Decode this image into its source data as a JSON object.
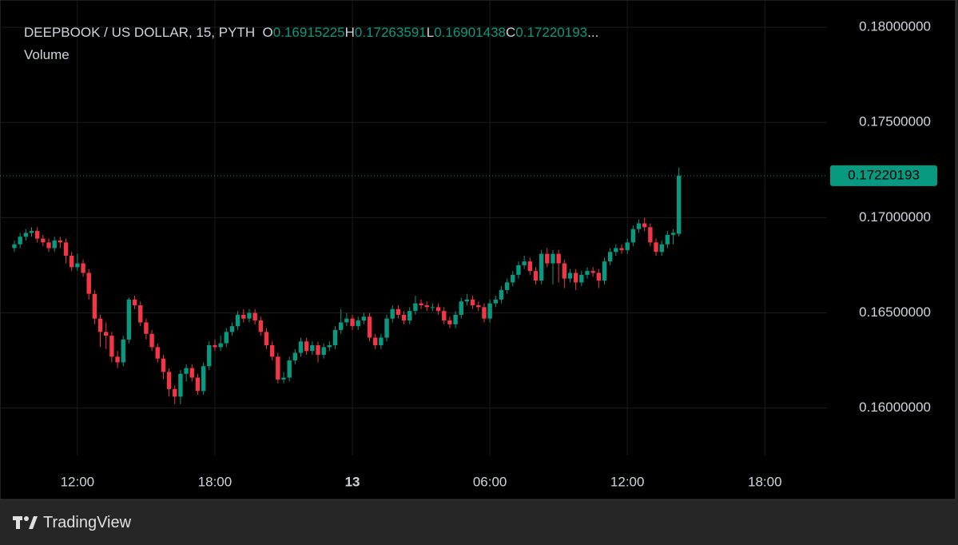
{
  "chart_data": {
    "type": "candlestick",
    "title": "DEEPBOOK / US DOLLAR, 15, PYTH",
    "subtitle": "Volume",
    "ohlc_labels": [
      "O",
      "H",
      "L",
      "C"
    ],
    "header_ellipsis": "...",
    "brand": "TradingView",
    "up_color": "#089981",
    "down_color": "#f23645",
    "grid": true,
    "categories": [
      null,
      null,
      null,
      null,
      null,
      null,
      null,
      null,
      null,
      null,
      null,
      "12:00",
      null,
      null,
      null,
      null,
      null,
      null,
      null,
      null,
      null,
      null,
      null,
      null,
      null,
      null,
      null,
      null,
      null,
      null,
      null,
      null,
      null,
      null,
      null,
      "18:00",
      null,
      null,
      null,
      null,
      null,
      null,
      null,
      null,
      null,
      null,
      null,
      null,
      null,
      null,
      null,
      null,
      null,
      null,
      null,
      null,
      null,
      null,
      null,
      "13",
      null,
      null,
      null,
      null,
      null,
      null,
      null,
      null,
      null,
      null,
      null,
      null,
      null,
      null,
      null,
      null,
      null,
      null,
      null,
      null,
      null,
      null,
      null,
      "06:00",
      null,
      null,
      null,
      null,
      null,
      null,
      null,
      null,
      null,
      null,
      null,
      null,
      null,
      null,
      null,
      null,
      null,
      null,
      null,
      null,
      null,
      null,
      null,
      "12:00",
      null,
      null,
      null,
      null,
      null,
      null,
      null,
      null,
      null,
      null,
      null,
      null,
      null,
      null,
      null,
      null,
      null,
      null,
      null,
      null,
      null,
      null,
      null,
      "18:00"
    ],
    "open": [
      0.1684,
      0.1686,
      0.169,
      0.1692,
      0.1693,
      0.1689,
      0.1687,
      0.1684,
      0.1688,
      0.1687,
      0.168,
      0.1674,
      0.1676,
      0.1671,
      0.166,
      0.1647,
      0.164,
      0.1638,
      0.1627,
      0.1624,
      0.1636,
      0.1657,
      0.1654,
      0.1645,
      0.1639,
      0.1632,
      0.1626,
      0.1619,
      0.161,
      0.1606,
      0.1618,
      0.1621,
      0.1616,
      0.1609,
      0.1622,
      0.1633,
      0.1632,
      0.1634,
      0.164,
      0.1643,
      0.1649,
      0.1647,
      0.165,
      0.1646,
      0.164,
      0.1633,
      0.1627,
      0.1615,
      0.1616,
      0.1625,
      0.1629,
      0.1635,
      0.163,
      0.1633,
      0.1628,
      0.1632,
      0.1633,
      0.1641,
      0.1645,
      0.1647,
      0.1643,
      0.1646,
      0.1648,
      0.1637,
      0.1633,
      0.1637,
      0.1647,
      0.1652,
      0.1649,
      0.1646,
      0.1651,
      0.1655,
      0.1654,
      0.1653,
      0.1653,
      0.1651,
      0.1646,
      0.1644,
      0.1649,
      0.1656,
      0.1657,
      0.1654,
      0.1653,
      0.1647,
      0.1655,
      0.1657,
      0.1662,
      0.1666,
      0.167,
      0.1675,
      0.1677,
      0.1672,
      0.1667,
      0.1681,
      0.1676,
      0.1681,
      0.1676,
      0.1668,
      0.1671,
      0.1666,
      0.167,
      0.1672,
      0.1671,
      0.1667,
      0.1677,
      0.1682,
      0.1684,
      0.1683,
      0.1687,
      0.1694,
      0.1697,
      0.1695,
      0.1687,
      0.1682,
      0.1686,
      0.1691,
      0.16915225,
      null,
      null,
      null,
      null,
      null,
      null,
      null,
      null,
      null,
      null,
      null,
      null,
      null,
      null,
      null
    ],
    "high": [
      0.1688,
      0.1692,
      0.1694,
      0.1695,
      0.1695,
      0.1691,
      0.1689,
      0.169,
      0.169,
      0.1689,
      0.1682,
      0.1681,
      0.1678,
      0.1673,
      0.1662,
      0.1649,
      0.1645,
      0.164,
      0.163,
      0.1638,
      0.1658,
      0.1659,
      0.1656,
      0.1647,
      0.1641,
      0.1634,
      0.1628,
      0.1621,
      0.1612,
      0.162,
      0.1623,
      0.1623,
      0.1618,
      0.1624,
      0.1635,
      0.1636,
      0.1638,
      0.1642,
      0.1645,
      0.1651,
      0.1652,
      0.1652,
      0.1652,
      0.1648,
      0.1642,
      0.1635,
      0.1629,
      0.1619,
      0.1627,
      0.1631,
      0.1637,
      0.1637,
      0.1635,
      0.1635,
      0.1634,
      0.1635,
      0.1643,
      0.1652,
      0.165,
      0.1649,
      0.1648,
      0.165,
      0.165,
      0.1639,
      0.1639,
      0.1649,
      0.1654,
      0.1654,
      0.1651,
      0.1653,
      0.1659,
      0.1657,
      0.1656,
      0.1655,
      0.1655,
      0.1653,
      0.1648,
      0.1651,
      0.1658,
      0.166,
      0.1659,
      0.1656,
      0.1655,
      0.1657,
      0.1659,
      0.1664,
      0.1668,
      0.1672,
      0.1677,
      0.168,
      0.1679,
      0.1674,
      0.1683,
      0.1684,
      0.1683,
      0.1683,
      0.1678,
      0.1673,
      0.1673,
      0.1672,
      0.1674,
      0.1674,
      0.1673,
      0.1679,
      0.1684,
      0.1686,
      0.1686,
      0.1689,
      0.1696,
      0.1699,
      0.17,
      0.1697,
      0.1689,
      0.1688,
      0.1693,
      0.1694,
      0.17263591,
      null,
      null,
      null,
      null,
      null,
      null,
      null,
      null,
      null,
      null,
      null,
      null,
      null,
      null,
      null
    ],
    "low": [
      0.1682,
      0.1684,
      0.1688,
      0.169,
      0.1687,
      0.1685,
      0.1682,
      0.1682,
      0.1684,
      0.1676,
      0.1672,
      0.1672,
      0.1669,
      0.1657,
      0.1644,
      0.1632,
      0.1631,
      0.1624,
      0.1621,
      0.1622,
      0.1634,
      0.1652,
      0.1643,
      0.1636,
      0.163,
      0.1624,
      0.1615,
      0.1606,
      0.1602,
      0.1602,
      0.1614,
      0.1614,
      0.1607,
      0.1607,
      0.162,
      0.163,
      0.163,
      0.1632,
      0.1638,
      0.1641,
      0.1645,
      0.1645,
      0.1644,
      0.1638,
      0.1631,
      0.1625,
      0.1613,
      0.1613,
      0.1614,
      0.1623,
      0.1627,
      0.1628,
      0.1628,
      0.1624,
      0.1626,
      0.163,
      0.1631,
      0.1639,
      0.1643,
      0.1641,
      0.1641,
      0.1644,
      0.1635,
      0.1631,
      0.1631,
      0.1635,
      0.1645,
      0.1647,
      0.1644,
      0.1644,
      0.1649,
      0.1652,
      0.1651,
      0.1651,
      0.1649,
      0.1644,
      0.1642,
      0.1642,
      0.1647,
      0.1654,
      0.1652,
      0.1651,
      0.1645,
      0.1645,
      0.1653,
      0.1655,
      0.166,
      0.1664,
      0.1668,
      0.1673,
      0.167,
      0.1665,
      0.1665,
      0.1674,
      0.1665,
      0.1666,
      0.1663,
      0.1666,
      0.1662,
      0.1664,
      0.1668,
      0.1669,
      0.1663,
      0.1665,
      0.1675,
      0.168,
      0.1681,
      0.1681,
      0.1685,
      0.1692,
      0.1693,
      0.1685,
      0.168,
      0.168,
      0.1684,
      0.1686,
      0.16901438,
      null,
      null,
      null,
      null,
      null,
      null,
      null,
      null,
      null,
      null,
      null,
      null,
      null,
      null,
      null
    ],
    "close": [
      0.1686,
      0.169,
      0.1692,
      0.1693,
      0.1689,
      0.1687,
      0.1684,
      0.1688,
      0.1687,
      0.168,
      0.1674,
      0.1676,
      0.1671,
      0.166,
      0.1647,
      0.164,
      0.1638,
      0.1627,
      0.1624,
      0.1636,
      0.1657,
      0.1654,
      0.1645,
      0.1639,
      0.1632,
      0.1626,
      0.1619,
      0.161,
      0.1606,
      0.1618,
      0.1621,
      0.1616,
      0.1609,
      0.1622,
      0.1633,
      0.1632,
      0.1634,
      0.164,
      0.1643,
      0.1649,
      0.1647,
      0.165,
      0.1646,
      0.164,
      0.1633,
      0.1627,
      0.1615,
      0.1616,
      0.1625,
      0.1629,
      0.1635,
      0.163,
      0.1633,
      0.1628,
      0.1632,
      0.1633,
      0.1641,
      0.1645,
      0.1647,
      0.1643,
      0.1646,
      0.1648,
      0.1637,
      0.1633,
      0.1637,
      0.1647,
      0.1652,
      0.1649,
      0.1646,
      0.1651,
      0.1655,
      0.1654,
      0.1653,
      0.1653,
      0.1651,
      0.1646,
      0.1644,
      0.1649,
      0.1656,
      0.1657,
      0.1654,
      0.1653,
      0.1647,
      0.1655,
      0.1657,
      0.1662,
      0.1666,
      0.167,
      0.1675,
      0.1677,
      0.1672,
      0.1667,
      0.1681,
      0.1676,
      0.1681,
      0.1676,
      0.1668,
      0.1671,
      0.1666,
      0.167,
      0.1672,
      0.1671,
      0.1667,
      0.1677,
      0.1682,
      0.1684,
      0.1683,
      0.1687,
      0.1694,
      0.1697,
      0.1695,
      0.1687,
      0.1682,
      0.1686,
      0.1691,
      0.1692,
      0.17220193,
      null,
      null,
      null,
      null,
      null,
      null,
      null,
      null,
      null,
      null,
      null,
      null,
      null,
      null,
      null
    ],
    "ylim": [
      0.15751,
      0.18143
    ],
    "yticks": [
      {
        "value": 0.16,
        "label": "0.16000000"
      },
      {
        "value": 0.165,
        "label": "0.16500000"
      },
      {
        "value": 0.17,
        "label": "0.17000000"
      },
      {
        "value": 0.175,
        "label": "0.17500000"
      },
      {
        "value": 0.18,
        "label": "0.18000000"
      }
    ]
  }
}
